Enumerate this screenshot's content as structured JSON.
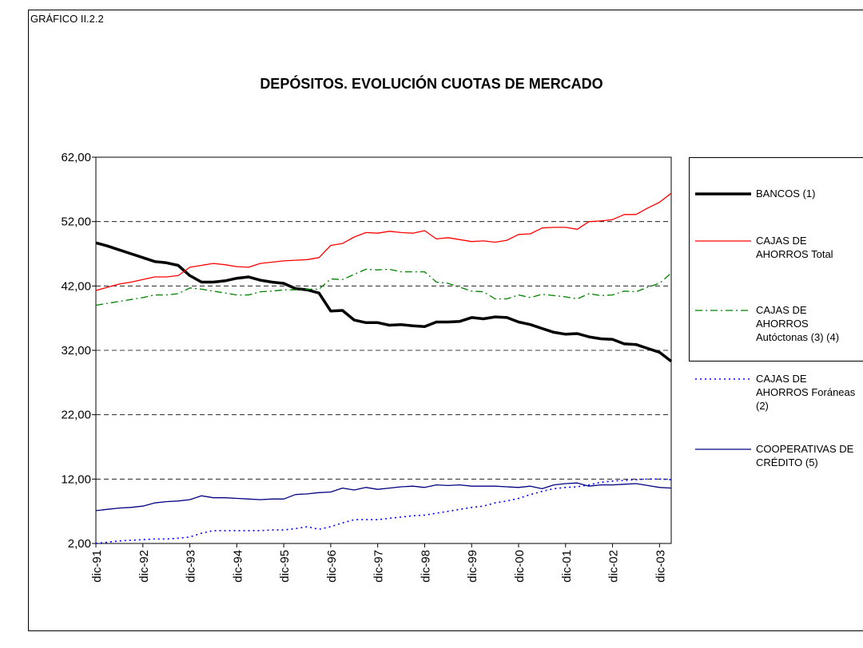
{
  "header": "GRÁFICO II.2.2",
  "chart_data": {
    "type": "line",
    "title": "DEPÓSITOS. EVOLUCIÓN CUOTAS DE MERCADO",
    "categories": [
      "dic-91",
      null,
      null,
      null,
      "dic-92",
      null,
      null,
      null,
      "dic-93",
      null,
      null,
      null,
      "dic-94",
      null,
      null,
      null,
      "dic-95",
      null,
      null,
      null,
      "dic-96",
      null,
      null,
      null,
      "dic-97",
      null,
      null,
      null,
      "dic-98",
      null,
      null,
      null,
      "dic-99",
      null,
      null,
      null,
      "dic-00",
      null,
      null,
      null,
      "dic-01",
      null,
      null,
      null,
      "dic-02",
      null,
      null,
      null,
      "dic-03",
      null
    ],
    "ylim": [
      2,
      62
    ],
    "yticks": [
      {
        "value": 2,
        "label": "2,00"
      },
      {
        "value": 12,
        "label": "12,00"
      },
      {
        "value": 22,
        "label": "22,00"
      },
      {
        "value": 32,
        "label": "32,00"
      },
      {
        "value": 42,
        "label": "42,00"
      },
      {
        "value": 52,
        "label": "52,00"
      },
      {
        "value": 62,
        "label": "62,00"
      }
    ],
    "grid": true,
    "legend": "right",
    "series": [
      {
        "name": "BANCOS (1)",
        "color": "#000000",
        "width": 3.5,
        "style": "solid",
        "values": [
          48.7,
          48.2,
          47.6,
          47.0,
          46.4,
          45.8,
          45.6,
          45.2,
          43.6,
          42.6,
          42.6,
          42.8,
          43.2,
          43.4,
          42.9,
          42.6,
          42.4,
          41.6,
          41.4,
          40.9,
          38.1,
          38.2,
          36.7,
          36.3,
          36.3,
          35.9,
          36.0,
          35.8,
          35.7,
          36.4,
          36.4,
          36.5,
          37.1,
          36.9,
          37.2,
          37.1,
          36.4,
          36.0,
          35.4,
          34.8,
          34.5,
          34.6,
          34.1,
          33.8,
          33.7,
          33.0,
          32.9,
          32.3,
          31.7,
          30.3
        ]
      },
      {
        "name": "CAJAS DE AHORROS Total",
        "color": "#ff0000",
        "width": 1.3,
        "style": "solid",
        "values": [
          41.3,
          41.8,
          42.3,
          42.6,
          43.0,
          43.4,
          43.4,
          43.6,
          44.9,
          45.2,
          45.5,
          45.3,
          45.0,
          44.9,
          45.5,
          45.7,
          45.9,
          46.0,
          46.1,
          46.4,
          48.3,
          48.6,
          49.6,
          50.3,
          50.2,
          50.5,
          50.3,
          50.2,
          50.6,
          49.3,
          49.5,
          49.2,
          48.9,
          49.0,
          48.8,
          49.1,
          50.0,
          50.1,
          51.0,
          51.1,
          51.1,
          50.8,
          52.0,
          52.1,
          52.3,
          53.1,
          53.1,
          54.1,
          55.0,
          56.4
        ]
      },
      {
        "name": "CAJAS DE AHORROS Autóctonas (3) (4)",
        "color": "#008000",
        "width": 1.3,
        "style": "dashdot",
        "values": [
          39.0,
          39.3,
          39.6,
          39.9,
          40.2,
          40.6,
          40.6,
          40.8,
          41.7,
          41.5,
          41.2,
          40.9,
          40.6,
          40.6,
          41.1,
          41.2,
          41.4,
          41.4,
          41.5,
          41.5,
          43.1,
          43.0,
          43.8,
          44.6,
          44.5,
          44.6,
          44.2,
          44.2,
          44.2,
          42.6,
          42.4,
          41.8,
          41.2,
          41.1,
          40.0,
          40.0,
          40.6,
          40.2,
          40.7,
          40.5,
          40.3,
          40.0,
          40.8,
          40.5,
          40.6,
          41.2,
          41.1,
          41.8,
          42.4,
          44.0
        ]
      },
      {
        "name": "CAJAS DE AHORROS Foráneas (2)",
        "color": "#0000ff",
        "width": 1.6,
        "style": "dotted",
        "values": [
          2.0,
          2.2,
          2.4,
          2.5,
          2.6,
          2.7,
          2.7,
          2.8,
          3.0,
          3.6,
          4.0,
          4.0,
          4.0,
          4.0,
          4.0,
          4.1,
          4.1,
          4.3,
          4.6,
          4.2,
          4.6,
          5.2,
          5.7,
          5.7,
          5.7,
          5.9,
          6.1,
          6.3,
          6.4,
          6.7,
          7.0,
          7.3,
          7.6,
          7.8,
          8.3,
          8.6,
          9.0,
          9.6,
          10.1,
          10.5,
          10.7,
          10.8,
          11.1,
          11.5,
          11.7,
          11.8,
          11.9,
          12.0,
          12.0,
          11.9
        ]
      },
      {
        "name": "COOPERATIVAS DE CRÉDITO (5)",
        "color": "#000080",
        "width": 1.3,
        "style": "solid",
        "values": [
          7.1,
          7.3,
          7.5,
          7.6,
          7.8,
          8.3,
          8.5,
          8.6,
          8.8,
          9.4,
          9.1,
          9.1,
          9.0,
          8.9,
          8.8,
          8.9,
          8.9,
          9.6,
          9.7,
          9.9,
          10.0,
          10.6,
          10.3,
          10.7,
          10.4,
          10.6,
          10.8,
          10.9,
          10.7,
          11.1,
          11.0,
          11.1,
          10.9,
          10.9,
          10.9,
          10.8,
          10.7,
          10.9,
          10.5,
          11.1,
          11.3,
          11.4,
          10.9,
          11.1,
          11.1,
          11.2,
          11.3,
          11.0,
          10.7,
          10.6
        ]
      }
    ]
  }
}
